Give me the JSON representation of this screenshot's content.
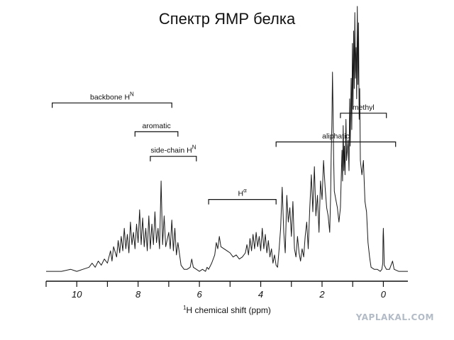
{
  "title": "Спектр ЯМР белка",
  "watermark": "YAPLAKAL.COM",
  "chart_data": {
    "type": "line",
    "x_axis": {
      "label_prefix": "1",
      "label_main": "H chemical shift (ppm)",
      "ticks": [
        10,
        8,
        6,
        4,
        2,
        0
      ],
      "tick_labels": [
        "10",
        "8",
        "6",
        "4",
        "2",
        "0"
      ],
      "range": [
        11,
        -0.8
      ],
      "reversed": true,
      "minor_step": 1
    },
    "y_axis": {
      "visible": false
    },
    "grid": false,
    "series": [
      {
        "points": [
          [
            11.0,
            0.01
          ],
          [
            10.5,
            0.01
          ],
          [
            10.2,
            0.02
          ],
          [
            10.0,
            0.01
          ],
          [
            9.8,
            0.02
          ],
          [
            9.6,
            0.03
          ],
          [
            9.5,
            0.05
          ],
          [
            9.4,
            0.03
          ],
          [
            9.3,
            0.06
          ],
          [
            9.2,
            0.04
          ],
          [
            9.1,
            0.07
          ],
          [
            9.0,
            0.05
          ],
          [
            8.9,
            0.11
          ],
          [
            8.85,
            0.06
          ],
          [
            8.8,
            0.13
          ],
          [
            8.7,
            0.08
          ],
          [
            8.65,
            0.16
          ],
          [
            8.6,
            0.1
          ],
          [
            8.55,
            0.18
          ],
          [
            8.5,
            0.11
          ],
          [
            8.45,
            0.22
          ],
          [
            8.4,
            0.12
          ],
          [
            8.35,
            0.19
          ],
          [
            8.3,
            0.1
          ],
          [
            8.25,
            0.25
          ],
          [
            8.2,
            0.14
          ],
          [
            8.15,
            0.2
          ],
          [
            8.1,
            0.12
          ],
          [
            8.05,
            0.24
          ],
          [
            8.0,
            0.15
          ],
          [
            7.95,
            0.31
          ],
          [
            7.9,
            0.14
          ],
          [
            7.85,
            0.27
          ],
          [
            7.8,
            0.13
          ],
          [
            7.75,
            0.22
          ],
          [
            7.7,
            0.11
          ],
          [
            7.65,
            0.28
          ],
          [
            7.6,
            0.12
          ],
          [
            7.55,
            0.24
          ],
          [
            7.5,
            0.14
          ],
          [
            7.45,
            0.3
          ],
          [
            7.4,
            0.15
          ],
          [
            7.35,
            0.22
          ],
          [
            7.3,
            0.12
          ],
          [
            7.25,
            0.45
          ],
          [
            7.2,
            0.14
          ],
          [
            7.15,
            0.28
          ],
          [
            7.1,
            0.13
          ],
          [
            7.0,
            0.2
          ],
          [
            6.95,
            0.12
          ],
          [
            6.9,
            0.26
          ],
          [
            6.85,
            0.11
          ],
          [
            6.8,
            0.22
          ],
          [
            6.75,
            0.09
          ],
          [
            6.7,
            0.15
          ],
          [
            6.6,
            0.04
          ],
          [
            6.5,
            0.02
          ],
          [
            6.4,
            0.02
          ],
          [
            6.3,
            0.03
          ],
          [
            6.25,
            0.07
          ],
          [
            6.2,
            0.03
          ],
          [
            6.0,
            0.01
          ],
          [
            5.9,
            0.02
          ],
          [
            5.8,
            0.01
          ],
          [
            5.75,
            0.03
          ],
          [
            5.7,
            0.02
          ],
          [
            5.6,
            0.05
          ],
          [
            5.5,
            0.09
          ],
          [
            5.45,
            0.15
          ],
          [
            5.4,
            0.12
          ],
          [
            5.35,
            0.18
          ],
          [
            5.3,
            0.13
          ],
          [
            5.2,
            0.12
          ],
          [
            5.1,
            0.11
          ],
          [
            5.0,
            0.1
          ],
          [
            4.9,
            0.08
          ],
          [
            4.8,
            0.09
          ],
          [
            4.7,
            0.07
          ],
          [
            4.6,
            0.08
          ],
          [
            4.5,
            0.1
          ],
          [
            4.45,
            0.14
          ],
          [
            4.4,
            0.09
          ],
          [
            4.35,
            0.17
          ],
          [
            4.3,
            0.11
          ],
          [
            4.25,
            0.19
          ],
          [
            4.2,
            0.12
          ],
          [
            4.15,
            0.2
          ],
          [
            4.1,
            0.13
          ],
          [
            4.05,
            0.18
          ],
          [
            4.0,
            0.11
          ],
          [
            3.95,
            0.22
          ],
          [
            3.9,
            0.12
          ],
          [
            3.85,
            0.19
          ],
          [
            3.8,
            0.1
          ],
          [
            3.75,
            0.16
          ],
          [
            3.7,
            0.08
          ],
          [
            3.65,
            0.12
          ],
          [
            3.6,
            0.05
          ],
          [
            3.55,
            0.09
          ],
          [
            3.5,
            0.04
          ],
          [
            3.45,
            0.03
          ],
          [
            3.4,
            0.12
          ],
          [
            3.35,
            0.22
          ],
          [
            3.3,
            0.42
          ],
          [
            3.25,
            0.2
          ],
          [
            3.2,
            0.1
          ],
          [
            3.15,
            0.38
          ],
          [
            3.1,
            0.25
          ],
          [
            3.05,
            0.32
          ],
          [
            3.0,
            0.18
          ],
          [
            2.95,
            0.35
          ],
          [
            2.9,
            0.12
          ],
          [
            2.85,
            0.08
          ],
          [
            2.8,
            0.18
          ],
          [
            2.75,
            0.1
          ],
          [
            2.7,
            0.06
          ],
          [
            2.65,
            0.12
          ],
          [
            2.6,
            0.08
          ],
          [
            2.55,
            0.18
          ],
          [
            2.5,
            0.25
          ],
          [
            2.45,
            0.12
          ],
          [
            2.4,
            0.32
          ],
          [
            2.35,
            0.48
          ],
          [
            2.3,
            0.3
          ],
          [
            2.25,
            0.52
          ],
          [
            2.2,
            0.28
          ],
          [
            2.15,
            0.38
          ],
          [
            2.1,
            0.2
          ],
          [
            2.05,
            0.45
          ],
          [
            2.0,
            0.36
          ],
          [
            1.95,
            0.55
          ],
          [
            1.9,
            0.42
          ],
          [
            1.85,
            0.32
          ],
          [
            1.8,
            0.28
          ],
          [
            1.75,
            0.2
          ],
          [
            1.72,
            0.38
          ],
          [
            1.7,
            0.58
          ],
          [
            1.68,
            0.72
          ],
          [
            1.66,
            0.98
          ],
          [
            1.64,
            0.8
          ],
          [
            1.62,
            0.55
          ],
          [
            1.6,
            0.4
          ],
          [
            1.55,
            0.36
          ],
          [
            1.5,
            0.32
          ],
          [
            1.45,
            0.25
          ],
          [
            1.4,
            0.32
          ],
          [
            1.35,
            0.6
          ],
          [
            1.33,
            0.45
          ],
          [
            1.31,
            0.72
          ],
          [
            1.29,
            0.5
          ],
          [
            1.27,
            0.62
          ],
          [
            1.25,
            0.48
          ],
          [
            1.22,
            0.75
          ],
          [
            1.2,
            0.55
          ],
          [
            1.15,
            0.65
          ],
          [
            1.12,
            0.5
          ],
          [
            1.1,
            0.85
          ],
          [
            1.08,
            0.62
          ],
          [
            1.05,
            0.95
          ],
          [
            1.03,
            0.7
          ],
          [
            1.01,
            1.12
          ],
          [
            0.99,
            0.8
          ],
          [
            0.97,
            1.18
          ],
          [
            0.95,
            0.9
          ],
          [
            0.93,
            1.27
          ],
          [
            0.91,
            0.95
          ],
          [
            0.89,
            1.1
          ],
          [
            0.87,
            0.85
          ],
          [
            0.85,
            1.3
          ],
          [
            0.83,
            0.92
          ],
          [
            0.81,
            1.22
          ],
          [
            0.79,
            0.75
          ],
          [
            0.77,
            0.9
          ],
          [
            0.75,
            0.55
          ],
          [
            0.7,
            0.48
          ],
          [
            0.65,
            0.55
          ],
          [
            0.6,
            0.35
          ],
          [
            0.55,
            0.3
          ],
          [
            0.5,
            0.15
          ],
          [
            0.45,
            0.08
          ],
          [
            0.4,
            0.03
          ],
          [
            0.3,
            0.02
          ],
          [
            0.2,
            0.02
          ],
          [
            0.1,
            0.01
          ],
          [
            0.05,
            0.02
          ],
          [
            0.02,
            0.05
          ],
          [
            0.01,
            0.18
          ],
          [
            0.0,
            0.22
          ],
          [
            -0.01,
            0.16
          ],
          [
            -0.03,
            0.04
          ],
          [
            -0.1,
            0.02
          ],
          [
            -0.2,
            0.02
          ],
          [
            -0.3,
            0.06
          ],
          [
            -0.35,
            0.02
          ],
          [
            -0.5,
            0.01
          ],
          [
            -0.8,
            0.01
          ]
        ]
      }
    ],
    "annotations": [
      {
        "label": "backbone H",
        "sup": "N",
        "from": 10.8,
        "to": 6.9,
        "level": 0.83
      },
      {
        "label": "aromatic",
        "from": 8.1,
        "to": 6.7,
        "level": 0.69
      },
      {
        "label": "side-chain H",
        "sup": "N",
        "from": 7.6,
        "to": 6.1,
        "level": 0.57
      },
      {
        "label": "H",
        "sup": "α",
        "from": 5.7,
        "to": 3.5,
        "level": 0.36
      },
      {
        "label": "aliphatic",
        "from": 3.5,
        "to": -0.4,
        "level": 0.64
      },
      {
        "label": "methyl",
        "from": 1.4,
        "to": -0.1,
        "level": 0.78
      }
    ]
  }
}
